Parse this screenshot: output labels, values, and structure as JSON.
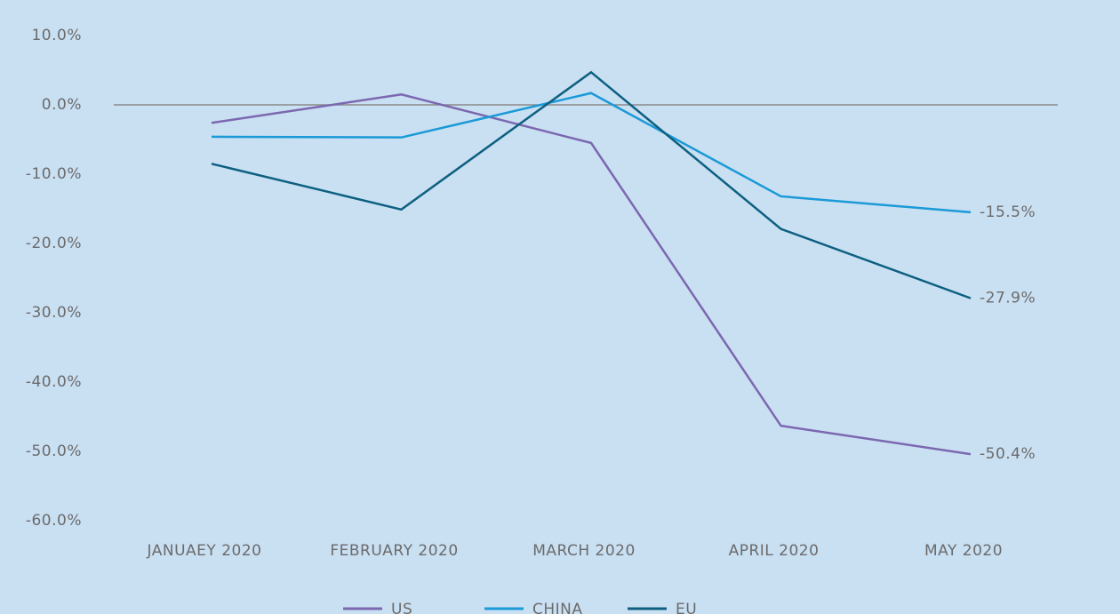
{
  "chart_data": {
    "type": "line",
    "categories": [
      "JANUAEY 2020",
      "FEBRUARY 2020",
      "MARCH 2020",
      "APRIL 2020",
      "MAY 2020"
    ],
    "series": [
      {
        "name": "US",
        "color": "#7b68b0",
        "values": [
          -2.6,
          1.5,
          -5.5,
          -46.3,
          -50.4
        ],
        "value_labels": [
          null,
          null,
          null,
          null,
          "-50.4%"
        ]
      },
      {
        "name": "CHINA",
        "color": "#1a9ad6",
        "values": [
          -4.6,
          -4.7,
          1.7,
          -13.2,
          -15.5
        ],
        "value_labels": [
          null,
          null,
          null,
          null,
          "-15.5%"
        ]
      },
      {
        "name": "EU",
        "color": "#0d6080",
        "values": [
          -8.5,
          -15.1,
          4.7,
          -17.9,
          -27.9
        ],
        "value_labels": [
          null,
          null,
          null,
          null,
          "-27.9%"
        ]
      }
    ],
    "ylim": [
      -60,
      10
    ],
    "yticks": [
      {
        "value": 10,
        "label": "10.0%"
      },
      {
        "value": 0,
        "label": "0.0%"
      },
      {
        "value": -10,
        "label": "-10.0%"
      },
      {
        "value": -20,
        "label": "-20.0%"
      },
      {
        "value": -30,
        "label": "-30.0%"
      },
      {
        "value": -40,
        "label": "-40.0%"
      },
      {
        "value": -50,
        "label": "-50.0%"
      },
      {
        "value": -60,
        "label": "-60.0%"
      }
    ],
    "grid": false,
    "legend": "bottom"
  }
}
